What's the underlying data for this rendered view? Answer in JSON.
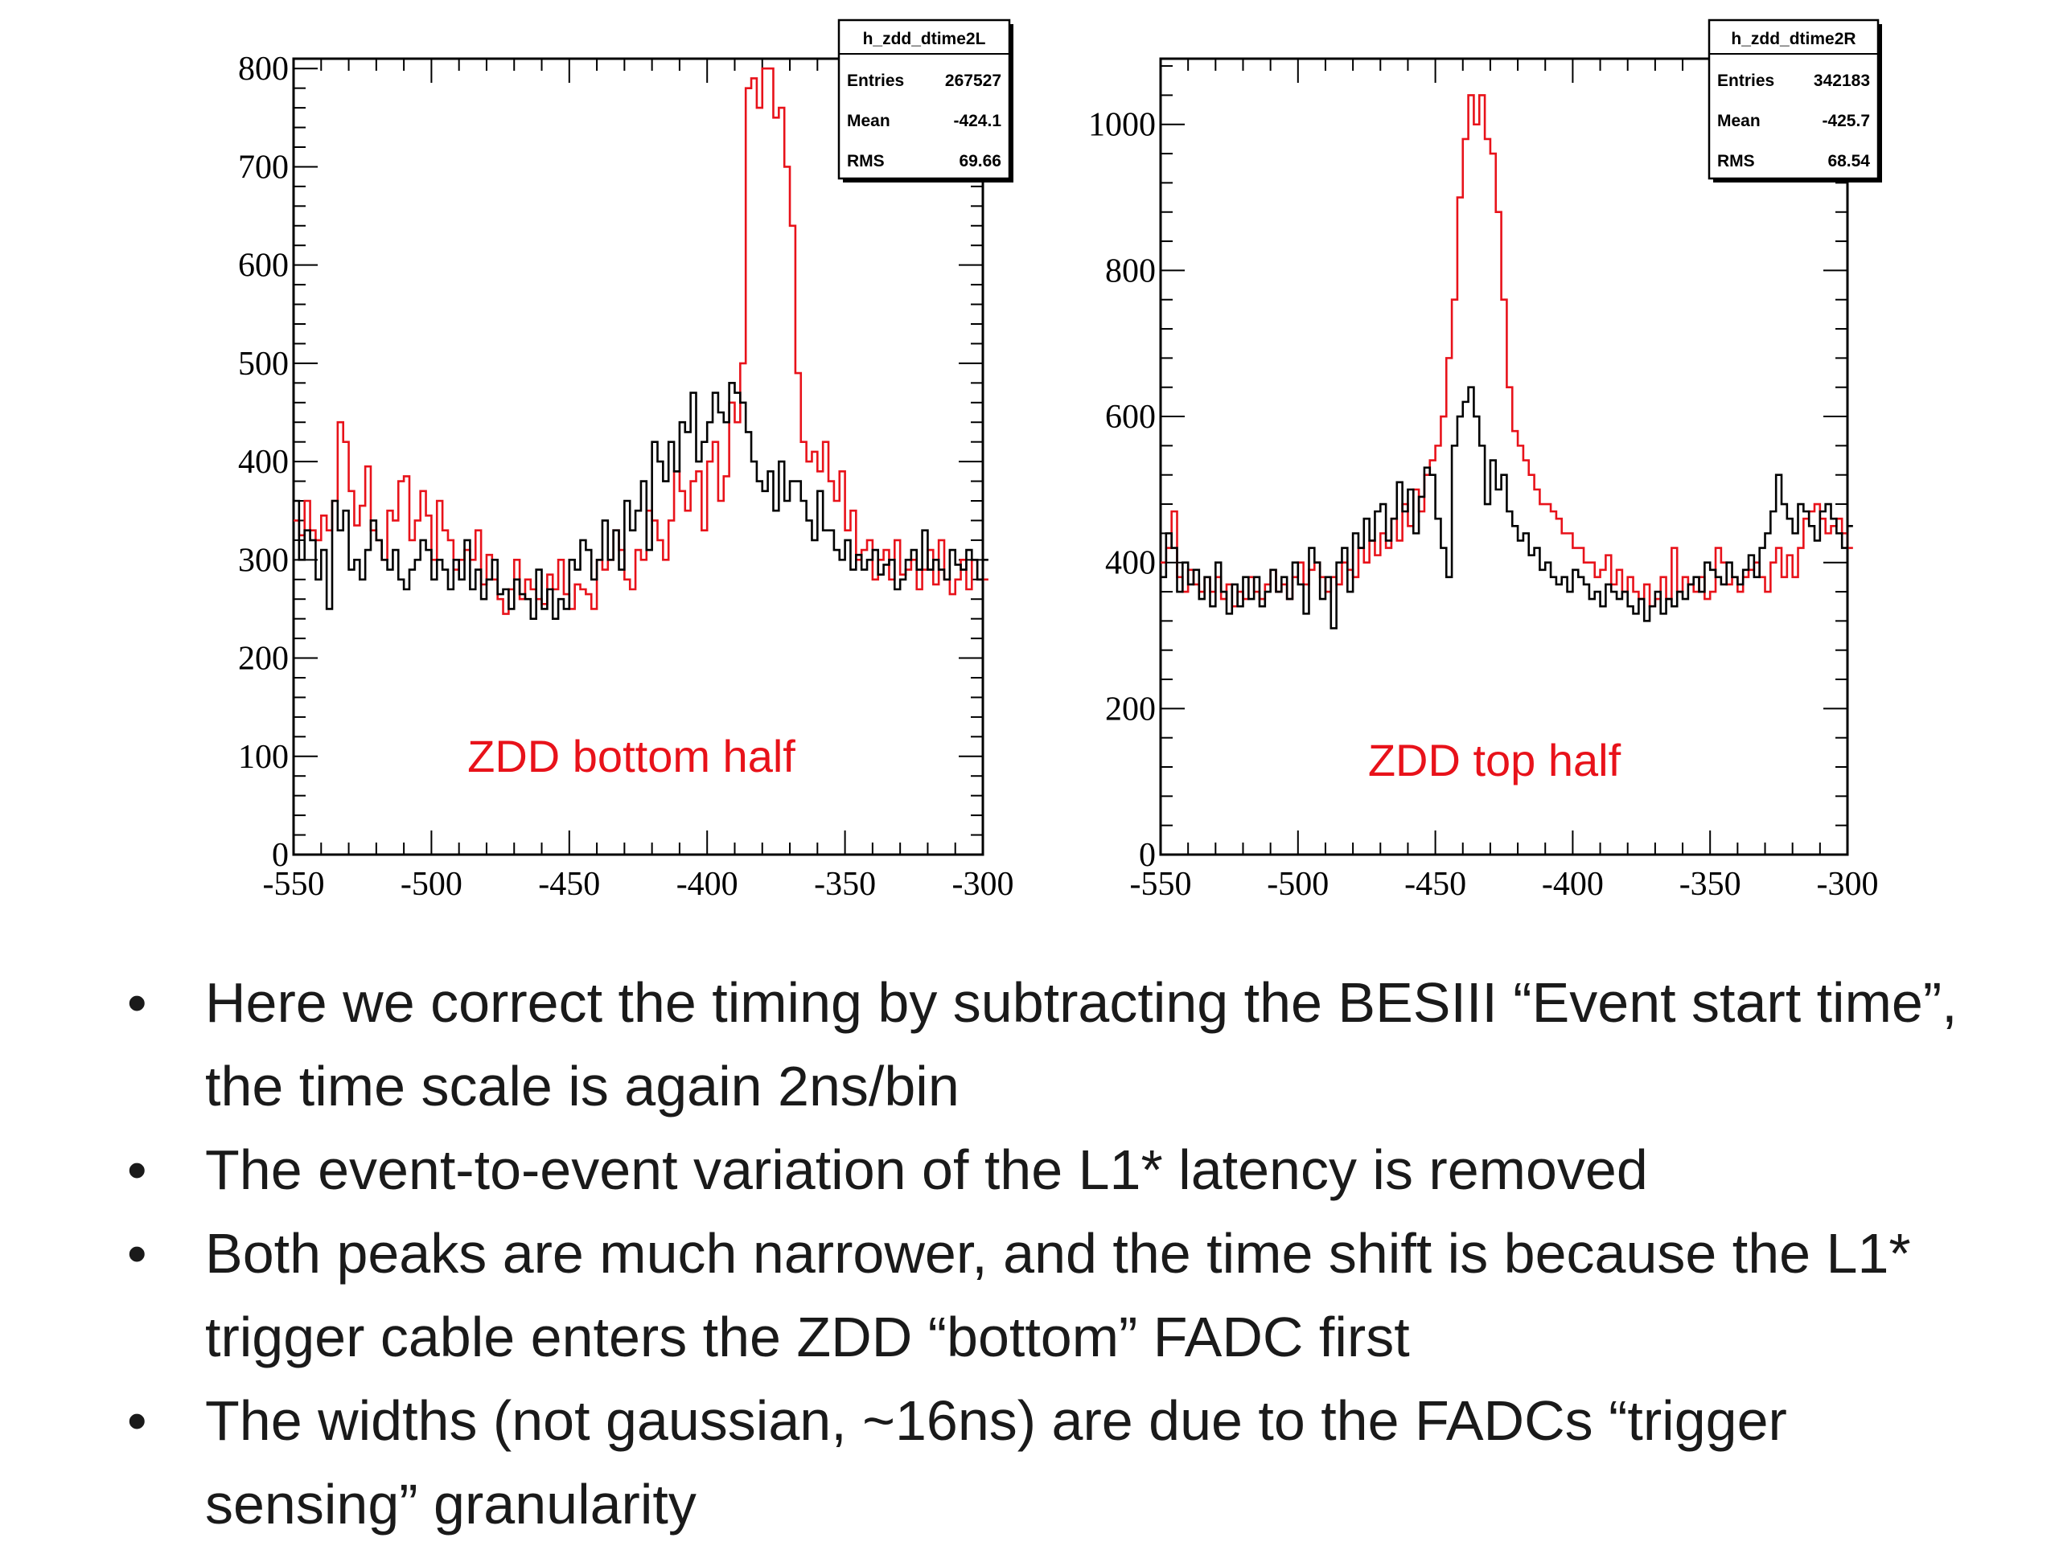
{
  "chart_data": [
    {
      "type": "histogram",
      "name": "h_zdd_dtime2L",
      "annotation": "ZDD bottom half",
      "stats": {
        "entries_label": "Entries",
        "entries": "267527",
        "mean_label": "Mean",
        "mean": "-424.1",
        "rms_label": "RMS",
        "rms": "69.66"
      },
      "xlim": [
        -550,
        -300
      ],
      "ylim": [
        0,
        810
      ],
      "xticks": [
        -550,
        -500,
        -450,
        -400,
        -350,
        -300
      ],
      "yticks": [
        0,
        100,
        200,
        300,
        400,
        500,
        600,
        700,
        800
      ],
      "bin_width": 2,
      "series": [
        {
          "color": "#e8121a",
          "values": [
            340,
            325,
            360,
            330,
            320,
            345,
            330,
            360,
            440,
            420,
            370,
            335,
            355,
            395,
            330,
            320,
            300,
            350,
            340,
            380,
            385,
            320,
            340,
            370,
            345,
            300,
            360,
            330,
            320,
            290,
            300,
            310,
            300,
            330,
            275,
            305,
            280,
            260,
            245,
            270,
            300,
            260,
            280,
            270,
            260,
            255,
            285,
            270,
            300,
            265,
            250,
            275,
            270,
            265,
            250,
            300,
            290,
            300,
            330,
            310,
            280,
            270,
            310,
            300,
            350,
            340,
            320,
            300,
            340,
            390,
            370,
            350,
            380,
            390,
            330,
            400,
            420,
            360,
            385,
            460,
            440,
            500,
            780,
            790,
            760,
            800,
            800,
            750,
            760,
            700,
            640,
            490,
            420,
            400,
            410,
            390,
            420,
            380,
            360,
            390,
            330,
            350,
            300,
            310,
            320,
            280,
            300,
            310,
            280,
            320,
            285,
            290,
            300,
            270,
            290,
            310,
            275,
            320,
            280,
            265,
            280,
            300,
            270,
            300,
            280,
            280
          ]
        },
        {
          "color": "#000000",
          "values": [
            360,
            300,
            330,
            320,
            280,
            310,
            250,
            360,
            330,
            350,
            290,
            300,
            280,
            310,
            340,
            320,
            300,
            290,
            310,
            280,
            270,
            290,
            300,
            320,
            310,
            280,
            300,
            290,
            270,
            300,
            280,
            320,
            270,
            290,
            260,
            280,
            300,
            265,
            270,
            250,
            280,
            265,
            260,
            240,
            290,
            250,
            270,
            240,
            260,
            250,
            300,
            290,
            320,
            310,
            280,
            300,
            340,
            300,
            330,
            290,
            360,
            330,
            350,
            380,
            310,
            420,
            400,
            380,
            420,
            390,
            440,
            430,
            470,
            400,
            420,
            440,
            470,
            450,
            440,
            480,
            470,
            460,
            430,
            400,
            380,
            370,
            390,
            350,
            400,
            360,
            380,
            380,
            360,
            340,
            320,
            370,
            330,
            330,
            310,
            300,
            320,
            290,
            305,
            290,
            300,
            310,
            285,
            295,
            300,
            270,
            280,
            300,
            310,
            290,
            330,
            290,
            300,
            290,
            280,
            310,
            295,
            290,
            310,
            300,
            280,
            300
          ]
        }
      ]
    },
    {
      "type": "histogram",
      "name": "h_zdd_dtime2R",
      "annotation": "ZDD top half",
      "stats": {
        "entries_label": "Entries",
        "entries": "342183",
        "mean_label": "Mean",
        "mean": "-425.7",
        "rms_label": "RMS",
        "rms": "68.54"
      },
      "xlim": [
        -550,
        -300
      ],
      "ylim": [
        0,
        1090
      ],
      "xticks": [
        -550,
        -500,
        -450,
        -400,
        -350,
        -300
      ],
      "yticks": [
        0,
        200,
        400,
        600,
        800,
        1000
      ],
      "bin_width": 2,
      "series": [
        {
          "color": "#e8121a",
          "values": [
            400,
            420,
            470,
            380,
            360,
            390,
            370,
            360,
            380,
            360,
            380,
            350,
            370,
            340,
            360,
            350,
            380,
            360,
            350,
            370,
            390,
            360,
            370,
            350,
            380,
            400,
            370,
            390,
            400,
            380,
            360,
            380,
            370,
            400,
            390,
            380,
            420,
            400,
            430,
            410,
            440,
            420,
            460,
            430,
            480,
            450,
            500,
            470,
            520,
            540,
            560,
            600,
            680,
            760,
            900,
            980,
            1040,
            1000,
            1040,
            980,
            960,
            880,
            760,
            640,
            580,
            560,
            540,
            520,
            500,
            480,
            480,
            470,
            460,
            440,
            440,
            420,
            420,
            400,
            400,
            380,
            390,
            410,
            370,
            390,
            360,
            380,
            360,
            350,
            370,
            340,
            350,
            380,
            350,
            420,
            360,
            380,
            370,
            360,
            380,
            350,
            360,
            420,
            400,
            370,
            380,
            360,
            380,
            390,
            400,
            380,
            360,
            400,
            420,
            380,
            410,
            380,
            420,
            460,
            470,
            480,
            460,
            440,
            450,
            460,
            440,
            420
          ]
        },
        {
          "color": "#000000",
          "values": [
            380,
            440,
            420,
            360,
            400,
            370,
            390,
            350,
            380,
            340,
            400,
            360,
            330,
            370,
            340,
            380,
            350,
            380,
            340,
            360,
            390,
            360,
            380,
            350,
            400,
            370,
            330,
            420,
            400,
            350,
            380,
            310,
            400,
            420,
            360,
            440,
            420,
            460,
            430,
            470,
            480,
            430,
            460,
            510,
            470,
            500,
            440,
            490,
            530,
            520,
            460,
            420,
            380,
            560,
            600,
            620,
            640,
            600,
            560,
            480,
            540,
            500,
            520,
            470,
            450,
            430,
            440,
            410,
            420,
            390,
            400,
            380,
            370,
            380,
            360,
            390,
            380,
            370,
            350,
            360,
            340,
            370,
            360,
            350,
            360,
            340,
            330,
            350,
            320,
            340,
            360,
            330,
            350,
            340,
            360,
            350,
            370,
            380,
            360,
            400,
            390,
            380,
            370,
            400,
            380,
            370,
            390,
            410,
            380,
            420,
            440,
            470,
            520,
            480,
            460,
            440,
            480,
            470,
            450,
            430,
            470,
            480,
            460,
            440,
            420,
            450
          ]
        }
      ]
    }
  ],
  "bullets": [
    {
      "marker": "•",
      "text": "Here we correct the timing by subtracting the BESIII “Event start time”, the time scale is again 2ns/bin"
    },
    {
      "marker": "•",
      "text": "The event-to-event variation of the L1* latency is removed"
    },
    {
      "marker": "•",
      "text": "Both peaks are much narrower, and the time shift is because the L1* trigger cable enters the ZDD “bottom” FADC first"
    },
    {
      "marker": "•",
      "text": "The widths (not gaussian, ~16ns) are due to the FADCs “trigger sensing” granularity"
    }
  ]
}
